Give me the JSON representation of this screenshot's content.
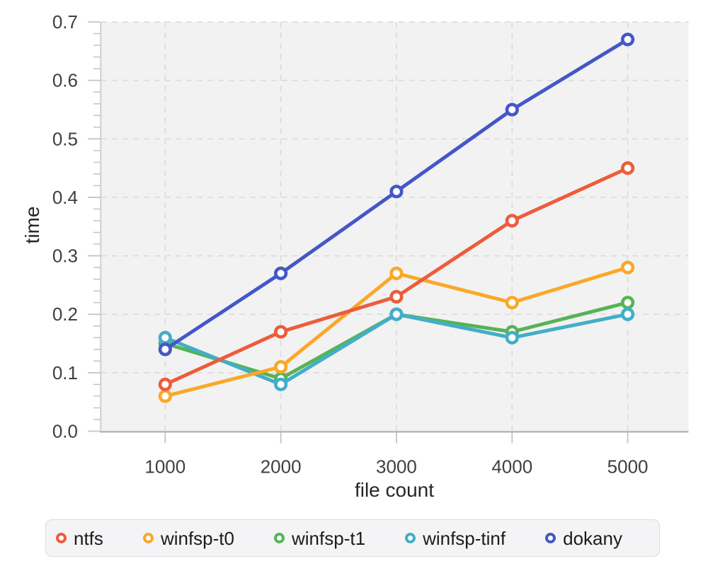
{
  "chart_data": {
    "type": "line",
    "title": "",
    "xlabel": "file count",
    "ylabel": "time",
    "x": [
      1000,
      2000,
      3000,
      4000,
      5000
    ],
    "x_ticks": [
      1000,
      2000,
      3000,
      4000,
      5000
    ],
    "y_ticks": [
      0.0,
      0.1,
      0.2,
      0.3,
      0.4,
      0.5,
      0.6,
      0.7
    ],
    "y_minor_tick_step": 0.02,
    "xlim": [
      447,
      5526
    ],
    "ylim": [
      0,
      0.7
    ],
    "grid": "dashed-major-both-axes",
    "plot_background": "#f2f2f2",
    "legend_position": "bottom",
    "marker_style": "open-circle-white-fill",
    "series": [
      {
        "name": "ntfs",
        "color": "#ed5c3b",
        "values": [
          0.08,
          0.17,
          0.23,
          0.36,
          0.45
        ]
      },
      {
        "name": "winfsp-t0",
        "color": "#fba827",
        "values": [
          0.06,
          0.11,
          0.27,
          0.22,
          0.28
        ]
      },
      {
        "name": "winfsp-t1",
        "color": "#56b356",
        "values": [
          0.15,
          0.09,
          0.2,
          0.17,
          0.22
        ]
      },
      {
        "name": "winfsp-tinf",
        "color": "#42aec7",
        "values": [
          0.16,
          0.08,
          0.2,
          0.16,
          0.2
        ]
      },
      {
        "name": "dokany",
        "color": "#4457c8",
        "values": [
          0.14,
          0.27,
          0.41,
          0.55,
          0.67
        ]
      }
    ],
    "draw_order": [
      2,
      3,
      1,
      0,
      4
    ]
  },
  "style_colors": {
    "gridline": "#d9d9d9",
    "x_axis_line": "#b5b5b5",
    "y_axis_line": "#cccccc",
    "tick_mark": "#c4c4c4",
    "tick_label": "#3f3f3f",
    "axis_label": "#262626",
    "legend_text": "#1c1c1c",
    "legend_background": "#f4f4f6",
    "legend_border": "#dcdcdc"
  }
}
